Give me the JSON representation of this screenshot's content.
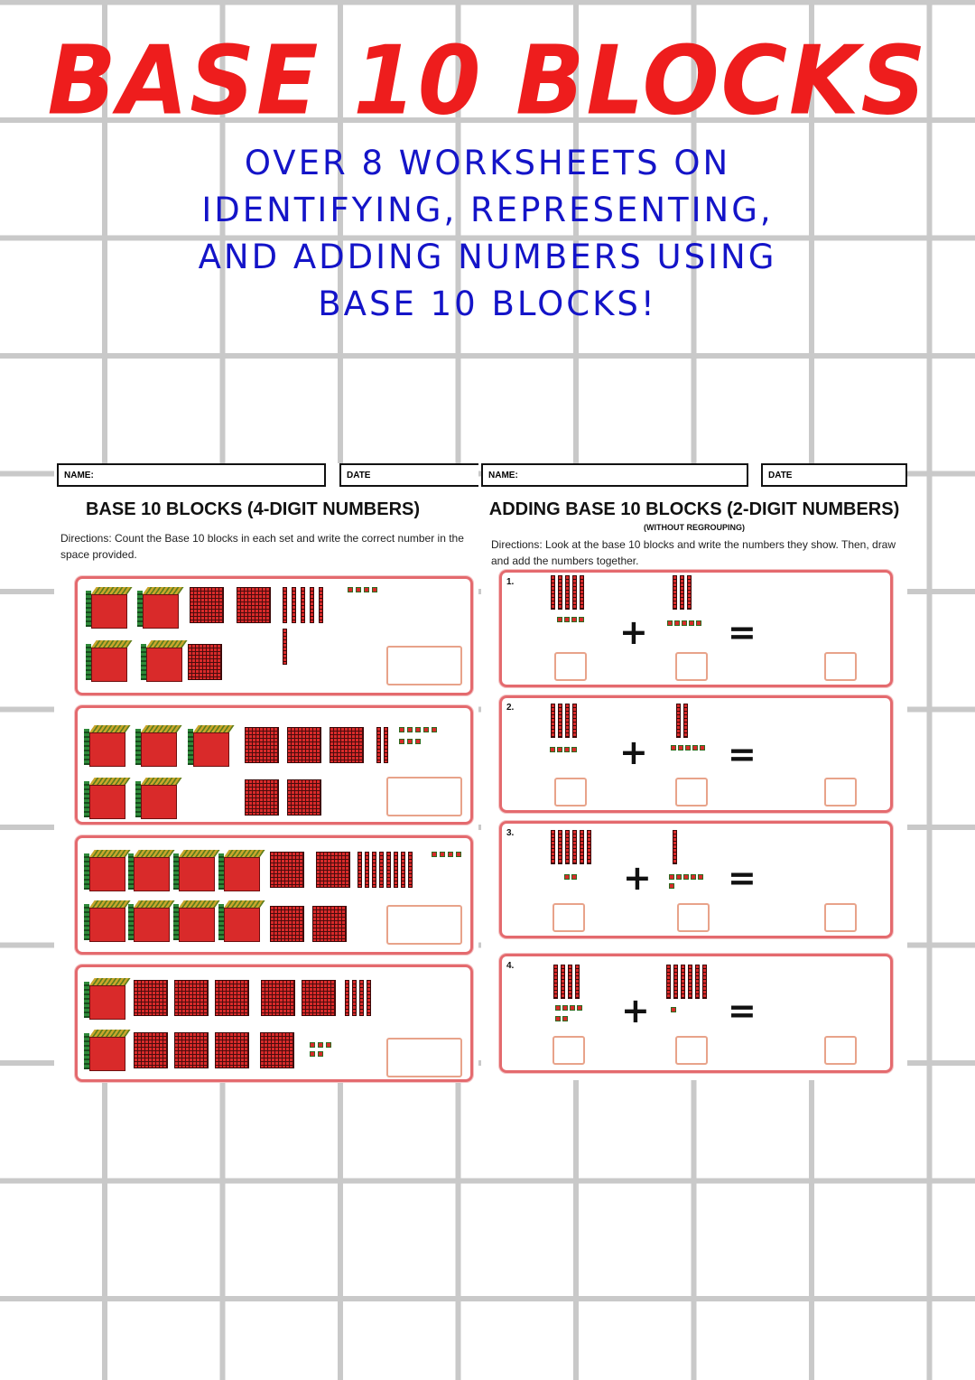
{
  "title": "BASE 10 BLOCKS",
  "subtitle_lines": [
    "OVER 8 WORKSHEETS ON",
    "IDENTIFYING, REPRESENTING,",
    "AND ADDING NUMBERS USING",
    "BASE 10 BLOCKS!"
  ],
  "left_sheet": {
    "name_label": "NAME:",
    "date_label": "DATE",
    "title": "BASE 10 BLOCKS (4-DIGIT NUMBERS)",
    "directions": "Directions: Count the Base 10 blocks in each set and write the correct number in the space provided."
  },
  "right_sheet": {
    "name_label": "NAME:",
    "date_label": "DATE",
    "title": "ADDING BASE 10 BLOCKS (2-DIGIT NUMBERS)",
    "note": "(WITHOUT REGROUPING)",
    "directions": "Directions: Look at the base 10 blocks and write the numbers they show. Then, draw and add the numbers together.",
    "problems": [
      {
        "label": "1.",
        "plus": "+",
        "equals": "="
      },
      {
        "label": "2.",
        "plus": "+",
        "equals": "="
      },
      {
        "label": "3.",
        "plus": "+",
        "equals": "="
      },
      {
        "label": "4.",
        "plus": "+",
        "equals": "="
      }
    ]
  },
  "colors": {
    "title": "#ee1d1d",
    "subtitle": "#1414c8",
    "card_border": "#e46a6e",
    "block": "#d92a2a"
  }
}
